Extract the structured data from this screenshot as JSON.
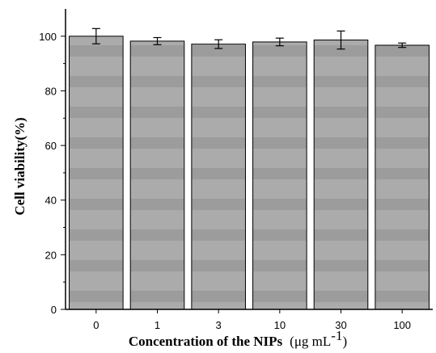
{
  "chart_data": {
    "type": "bar",
    "categories": [
      "0",
      "1",
      "3",
      "10",
      "30",
      "100"
    ],
    "values": [
      100.0,
      98.2,
      97.1,
      97.9,
      98.6,
      96.7
    ],
    "errors": [
      2.8,
      1.3,
      1.6,
      1.4,
      3.3,
      0.8
    ],
    "xlabel_bold": "Concentration of the NIPs",
    "xlabel_unit": "(μg mL",
    "xlabel_sup": "-1",
    "xlabel_close": ")",
    "ylabel": "Cell viability(%)",
    "ylim": [
      0,
      110
    ],
    "yticks": [
      "0",
      "20",
      "40",
      "60",
      "80",
      "100"
    ],
    "ytick_values": [
      0,
      20,
      40,
      60,
      80,
      100
    ],
    "bar_color": "#a9a9a9",
    "bar_stripe_color": "#999999",
    "grid": false
  }
}
